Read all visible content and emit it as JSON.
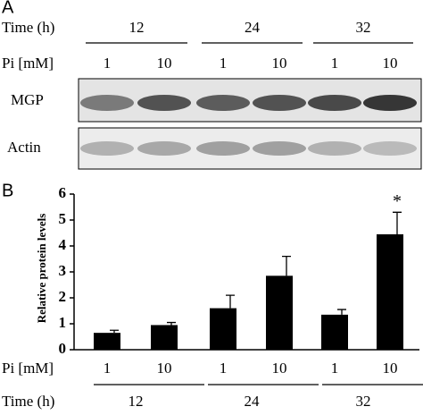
{
  "panel_a": {
    "label": "A",
    "time_label": "Time (h)",
    "times": [
      "12",
      "24",
      "32"
    ],
    "pi_label": "Pi [mM]",
    "pi": [
      "1",
      "10",
      "1",
      "10",
      "1",
      "10"
    ],
    "blots": [
      "MGP",
      "Actin"
    ]
  },
  "chart_data": {
    "type": "bar",
    "panel_label": "B",
    "y_label": "Relative protein levels",
    "categories": [
      "1",
      "10",
      "1",
      "10",
      "1",
      "10"
    ],
    "category_label": "Pi [mM]",
    "group_label": "Time (h)",
    "groups": [
      "12",
      "24",
      "32"
    ],
    "values": [
      0.65,
      0.95,
      1.6,
      2.85,
      1.35,
      4.45
    ],
    "errors": [
      0.1,
      0.1,
      0.5,
      0.75,
      0.2,
      0.85
    ],
    "annotations": [
      {
        "index": 5,
        "text": "*"
      }
    ],
    "color": "#000000",
    "ylim": [
      0,
      6
    ],
    "yticks": [
      0,
      1,
      2,
      3,
      4,
      5,
      6
    ]
  }
}
